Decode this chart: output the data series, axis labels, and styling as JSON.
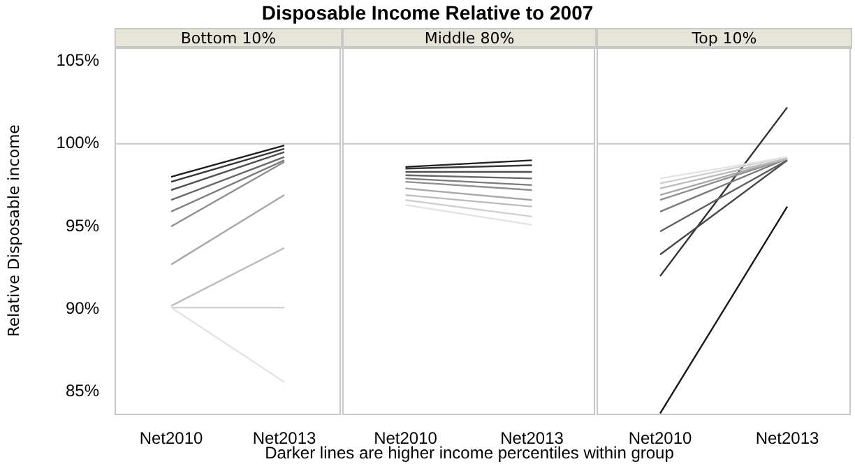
{
  "chart_data": [
    {
      "type": "line",
      "title": "Disposable Income Relative to 2007",
      "subtitle": "Bottom 10%",
      "ylabel": "Relative Disposable income",
      "categories": [
        "Net2010",
        "Net2013"
      ],
      "ylim": [
        83.6,
        105.9
      ],
      "yticks": [
        {
          "value": 85,
          "label": "85%"
        },
        {
          "value": 90,
          "label": "90%"
        },
        {
          "value": 95,
          "label": "95%"
        },
        {
          "value": 100,
          "label": "100%"
        },
        {
          "value": 105,
          "label": "105%"
        }
      ],
      "ref_lines": [
        {
          "axis": "y",
          "value": 100,
          "color": "#c8c8c8"
        }
      ],
      "legend": false,
      "series": [
        {
          "color": "#e4e4e4",
          "values": [
            90.1,
            85.6
          ]
        },
        {
          "color": "#d0d0d0",
          "values": [
            90.1,
            90.1
          ]
        },
        {
          "color": "#bcbcbc",
          "values": [
            90.2,
            93.7
          ]
        },
        {
          "color": "#a8a8a8",
          "values": [
            92.7,
            96.9
          ]
        },
        {
          "color": "#909090",
          "values": [
            95.0,
            98.9
          ]
        },
        {
          "color": "#7c7c7c",
          "values": [
            95.9,
            99.0
          ]
        },
        {
          "color": "#686868",
          "values": [
            96.6,
            99.2
          ]
        },
        {
          "color": "#505050",
          "values": [
            97.2,
            99.5
          ]
        },
        {
          "color": "#383838",
          "values": [
            97.7,
            99.7
          ]
        },
        {
          "color": "#202020",
          "values": [
            98.0,
            99.9
          ]
        }
      ]
    },
    {
      "type": "line",
      "subtitle": "Middle 80%",
      "xlabel": "Darker lines are higher income percentiles within group",
      "categories": [
        "Net2010",
        "Net2013"
      ],
      "ylim": [
        83.6,
        105.9
      ],
      "tick_labels": "x",
      "ref_lines": [
        {
          "axis": "y",
          "value": 100,
          "color": "#c8c8c8"
        }
      ],
      "legend": false,
      "series": [
        {
          "color": "#e4e4e4",
          "values": [
            96.3,
            95.1
          ]
        },
        {
          "color": "#d0d0d0",
          "values": [
            96.6,
            95.6
          ]
        },
        {
          "color": "#bcbcbc",
          "values": [
            96.9,
            96.2
          ]
        },
        {
          "color": "#a8a8a8",
          "values": [
            97.3,
            96.6
          ]
        },
        {
          "color": "#909090",
          "values": [
            97.7,
            97.2
          ]
        },
        {
          "color": "#7c7c7c",
          "values": [
            97.9,
            97.5
          ]
        },
        {
          "color": "#686868",
          "values": [
            98.1,
            97.9
          ]
        },
        {
          "color": "#505050",
          "values": [
            98.3,
            98.3
          ]
        },
        {
          "color": "#383838",
          "values": [
            98.5,
            98.7
          ]
        },
        {
          "color": "#202020",
          "values": [
            98.6,
            99.0
          ]
        }
      ]
    },
    {
      "type": "line",
      "subtitle": "Top 10%",
      "categories": [
        "Net2010",
        "Net2013"
      ],
      "ylim": [
        83.6,
        105.9
      ],
      "tick_labels": "x",
      "ref_lines": [
        {
          "axis": "y",
          "value": 100,
          "color": "#c8c8c8"
        }
      ],
      "legend": false,
      "series": [
        {
          "color": "#e4e4e4",
          "values": [
            97.9,
            99.2
          ]
        },
        {
          "color": "#d0d0d0",
          "values": [
            97.6,
            99.2
          ]
        },
        {
          "color": "#bcbcbc",
          "values": [
            97.3,
            99.1
          ]
        },
        {
          "color": "#a8a8a8",
          "values": [
            96.9,
            99.1
          ]
        },
        {
          "color": "#909090",
          "values": [
            96.6,
            99.1
          ]
        },
        {
          "color": "#7c7c7c",
          "values": [
            95.9,
            99.1
          ]
        },
        {
          "color": "#606060",
          "values": [
            94.7,
            99.0
          ]
        },
        {
          "color": "#484848",
          "values": [
            93.3,
            99.0
          ]
        },
        {
          "color": "#303030",
          "values": [
            92.0,
            102.2
          ]
        },
        {
          "color": "#181818",
          "values": [
            83.7,
            96.2
          ]
        }
      ]
    }
  ]
}
